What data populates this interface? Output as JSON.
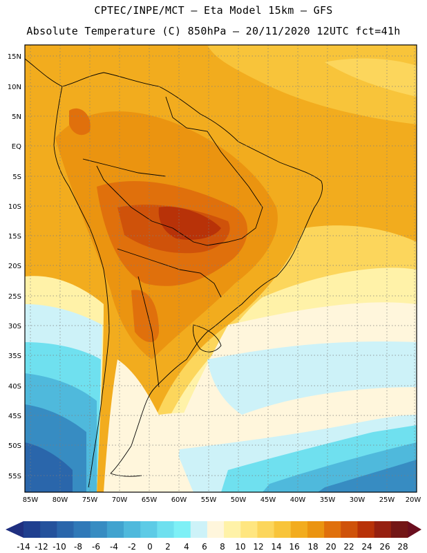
{
  "header": {
    "line1": "CPTEC/INPE/MCT –  Eta Model 15km – GFS",
    "line2": "Absolute Temperature (C) 850hPa – 20/11/2020 12UTC fct=41h"
  },
  "axes": {
    "lat_labels": [
      "15N",
      "10N",
      "5N",
      "EQ",
      "5S",
      "10S",
      "15S",
      "20S",
      "25S",
      "30S",
      "35S",
      "40S",
      "45S",
      "50S",
      "55S"
    ],
    "lon_labels": [
      "85W",
      "80W",
      "75W",
      "70W",
      "65W",
      "60W",
      "55W",
      "50W",
      "45W",
      "40W",
      "35W",
      "30W",
      "25W",
      "20W"
    ]
  },
  "colorbar": {
    "labels": [
      "-14",
      "-12",
      "-10",
      "-8",
      "-6",
      "-4",
      "-2",
      "0",
      "2",
      "4",
      "6",
      "8",
      "10",
      "12",
      "14",
      "16",
      "18",
      "20",
      "22",
      "24",
      "26",
      "28"
    ],
    "colors": [
      "#1f3f8f",
      "#24529c",
      "#2a66ab",
      "#3079b8",
      "#378cc2",
      "#41a3cf",
      "#4fb9dc",
      "#5dcbe6",
      "#6fe0ef",
      "#7ef0f6",
      "#cdf2f8",
      "#fff6dc",
      "#fff2a8",
      "#ffe680",
      "#fcd65c",
      "#f8c43a",
      "#f2ac1e",
      "#eb9410",
      "#e0700c",
      "#cf520a",
      "#b83208",
      "#962010",
      "#731616"
    ],
    "left_arrow_color": "#1f2f80",
    "right_arrow_color": "#6a0e1e"
  }
}
